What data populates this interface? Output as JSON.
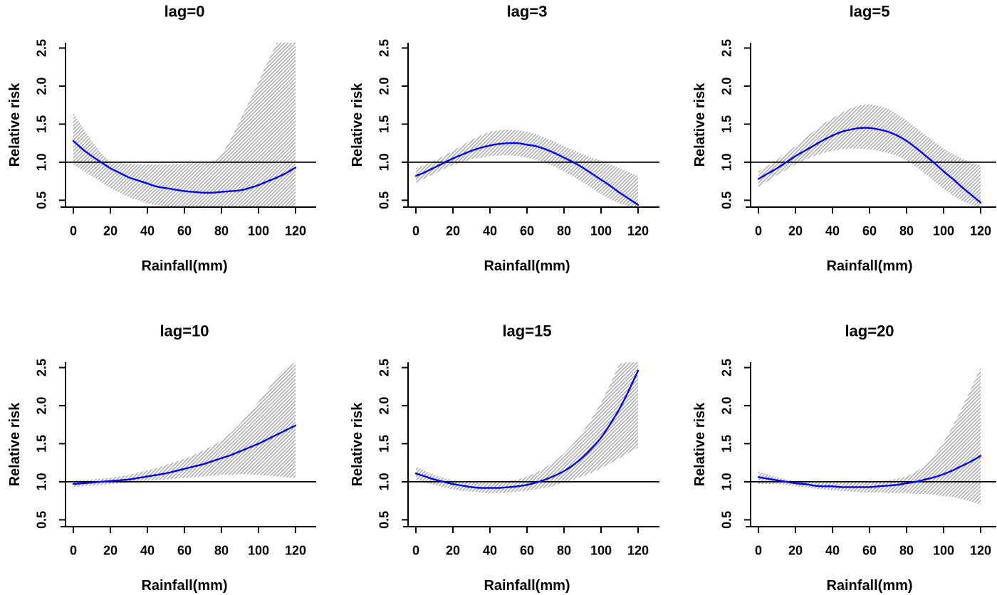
{
  "figure": {
    "background": "#ffffff",
    "colors": {
      "curve": "#0000f0",
      "hatch": "#a4a4a4",
      "axis": "#000000",
      "reference_line": "#000000"
    },
    "xlabel": "Rainfall(mm)",
    "ylabel": "Relative risk"
  },
  "chart_data": [
    {
      "type": "line",
      "title": "lag=0",
      "xlabel": "Rainfall(mm)",
      "ylabel": "Relative risk",
      "xticks": [
        0,
        20,
        40,
        60,
        80,
        100,
        120
      ],
      "ytick_labels": [
        "0.5",
        "1.0",
        "1.5",
        "2.0",
        "2.5"
      ],
      "yticks": [
        0.5,
        1.0,
        1.5,
        2.0,
        2.5
      ],
      "xlim": [
        -4,
        131
      ],
      "ylim": [
        0.41,
        2.57
      ],
      "ref_line_y": 1.0,
      "band_style": "hatched",
      "x": [
        0,
        5,
        10,
        15,
        20,
        25,
        30,
        35,
        40,
        45,
        50,
        55,
        60,
        65,
        70,
        75,
        80,
        85,
        90,
        95,
        100,
        105,
        110,
        115,
        120
      ],
      "curve": [
        1.28,
        1.17,
        1.08,
        1.0,
        0.92,
        0.86,
        0.8,
        0.76,
        0.72,
        0.68,
        0.66,
        0.64,
        0.62,
        0.61,
        0.6,
        0.6,
        0.61,
        0.62,
        0.63,
        0.66,
        0.7,
        0.75,
        0.8,
        0.86,
        0.93
      ],
      "upper": [
        1.65,
        1.45,
        1.28,
        1.12,
        1.0,
        0.99,
        0.98,
        0.97,
        0.97,
        0.97,
        0.97,
        0.98,
        0.98,
        0.99,
        0.99,
        1.01,
        1.1,
        1.3,
        1.55,
        1.8,
        2.05,
        2.32,
        2.57,
        2.57,
        2.57
      ],
      "lower": [
        0.97,
        0.89,
        0.82,
        0.74,
        0.66,
        0.6,
        0.54,
        0.5,
        0.46,
        0.44,
        0.42,
        0.41,
        0.41,
        0.41,
        0.41,
        0.41,
        0.41,
        0.41,
        0.41,
        0.41,
        0.41,
        0.41,
        0.41,
        0.41,
        0.41
      ]
    },
    {
      "type": "line",
      "title": "lag=3",
      "xlabel": "Rainfall(mm)",
      "ylabel": "Relative risk",
      "xticks": [
        0,
        20,
        40,
        60,
        80,
        100,
        120
      ],
      "ytick_labels": [
        "0.5",
        "1.0",
        "1.5",
        "2.0",
        "2.5"
      ],
      "yticks": [
        0.5,
        1.0,
        1.5,
        2.0,
        2.5
      ],
      "xlim": [
        -4,
        131
      ],
      "ylim": [
        0.41,
        2.57
      ],
      "ref_line_y": 1.0,
      "band_style": "hatched",
      "x": [
        0,
        5,
        10,
        15,
        20,
        25,
        30,
        35,
        40,
        45,
        50,
        55,
        60,
        65,
        70,
        75,
        80,
        85,
        90,
        95,
        100,
        105,
        110,
        115,
        120
      ],
      "curve": [
        0.82,
        0.87,
        0.93,
        0.99,
        1.05,
        1.1,
        1.15,
        1.19,
        1.22,
        1.24,
        1.25,
        1.25,
        1.23,
        1.21,
        1.17,
        1.12,
        1.06,
        1.0,
        0.93,
        0.85,
        0.77,
        0.69,
        0.6,
        0.52,
        0.44
      ],
      "upper": [
        0.92,
        0.97,
        1.02,
        1.08,
        1.15,
        1.22,
        1.29,
        1.35,
        1.4,
        1.42,
        1.43,
        1.42,
        1.4,
        1.37,
        1.32,
        1.27,
        1.21,
        1.16,
        1.11,
        1.06,
        1.02,
        0.97,
        0.92,
        0.87,
        0.82
      ],
      "lower": [
        0.73,
        0.79,
        0.85,
        0.91,
        0.96,
        1.0,
        1.04,
        1.06,
        1.08,
        1.09,
        1.09,
        1.08,
        1.06,
        1.03,
        0.99,
        0.94,
        0.88,
        0.81,
        0.74,
        0.66,
        0.58,
        0.51,
        0.46,
        0.42,
        0.41
      ]
    },
    {
      "type": "line",
      "title": "lag=5",
      "xlabel": "Rainfall(mm)",
      "ylabel": "Relative risk",
      "xticks": [
        0,
        20,
        40,
        60,
        80,
        100,
        120
      ],
      "ytick_labels": [
        "0.5",
        "1.0",
        "1.5",
        "2.0",
        "2.5"
      ],
      "yticks": [
        0.5,
        1.0,
        1.5,
        2.0,
        2.5
      ],
      "xlim": [
        -4,
        131
      ],
      "ylim": [
        0.41,
        2.57
      ],
      "ref_line_y": 1.0,
      "band_style": "hatched",
      "x": [
        0,
        5,
        10,
        15,
        20,
        25,
        30,
        35,
        40,
        45,
        50,
        55,
        60,
        65,
        70,
        75,
        80,
        85,
        90,
        95,
        100,
        105,
        110,
        115,
        120
      ],
      "curve": [
        0.78,
        0.85,
        0.92,
        1.0,
        1.08,
        1.15,
        1.22,
        1.29,
        1.35,
        1.4,
        1.43,
        1.45,
        1.45,
        1.43,
        1.4,
        1.35,
        1.28,
        1.19,
        1.09,
        0.99,
        0.88,
        0.78,
        0.67,
        0.57,
        0.47
      ],
      "upper": [
        0.88,
        0.95,
        1.03,
        1.12,
        1.21,
        1.31,
        1.41,
        1.5,
        1.58,
        1.65,
        1.71,
        1.75,
        1.76,
        1.74,
        1.7,
        1.63,
        1.55,
        1.45,
        1.36,
        1.27,
        1.18,
        1.11,
        1.05,
        1.0,
        0.96
      ],
      "lower": [
        0.67,
        0.75,
        0.83,
        0.9,
        0.97,
        1.03,
        1.08,
        1.12,
        1.15,
        1.17,
        1.18,
        1.18,
        1.17,
        1.15,
        1.12,
        1.08,
        1.02,
        0.94,
        0.85,
        0.75,
        0.65,
        0.56,
        0.49,
        0.44,
        0.41
      ]
    },
    {
      "type": "line",
      "title": "lag=10",
      "xlabel": "Rainfall(mm)",
      "ylabel": "Relative risk",
      "xticks": [
        0,
        20,
        40,
        60,
        80,
        100,
        120
      ],
      "ytick_labels": [
        "0.5",
        "1.0",
        "1.5",
        "2.0",
        "2.5"
      ],
      "yticks": [
        0.5,
        1.0,
        1.5,
        2.0,
        2.5
      ],
      "xlim": [
        -4,
        131
      ],
      "ylim": [
        0.41,
        2.57
      ],
      "ref_line_y": 1.0,
      "band_style": "hatched",
      "x": [
        0,
        5,
        10,
        15,
        20,
        25,
        30,
        35,
        40,
        45,
        50,
        55,
        60,
        65,
        70,
        75,
        80,
        85,
        90,
        95,
        100,
        105,
        110,
        115,
        120
      ],
      "curve": [
        0.97,
        0.98,
        0.99,
        1.0,
        1.01,
        1.02,
        1.03,
        1.05,
        1.07,
        1.09,
        1.11,
        1.14,
        1.17,
        1.2,
        1.23,
        1.27,
        1.31,
        1.35,
        1.4,
        1.45,
        1.5,
        1.56,
        1.62,
        1.68,
        1.74
      ],
      "upper": [
        1.02,
        1.02,
        1.03,
        1.04,
        1.05,
        1.07,
        1.09,
        1.12,
        1.15,
        1.18,
        1.22,
        1.26,
        1.3,
        1.35,
        1.41,
        1.47,
        1.54,
        1.64,
        1.76,
        1.9,
        2.05,
        2.21,
        2.38,
        2.5,
        2.57
      ],
      "lower": [
        0.93,
        0.94,
        0.95,
        0.96,
        0.97,
        0.98,
        0.99,
        1.0,
        1.01,
        1.02,
        1.03,
        1.04,
        1.05,
        1.06,
        1.07,
        1.08,
        1.09,
        1.09,
        1.1,
        1.1,
        1.09,
        1.08,
        1.07,
        1.06,
        1.05
      ]
    },
    {
      "type": "line",
      "title": "lag=15",
      "xlabel": "Rainfall(mm)",
      "ylabel": "Relative risk",
      "xticks": [
        0,
        20,
        40,
        60,
        80,
        100,
        120
      ],
      "ytick_labels": [
        "0.5",
        "1.0",
        "1.5",
        "2.0",
        "2.5"
      ],
      "yticks": [
        0.5,
        1.0,
        1.5,
        2.0,
        2.5
      ],
      "xlim": [
        -4,
        131
      ],
      "ylim": [
        0.41,
        2.57
      ],
      "ref_line_y": 1.0,
      "band_style": "hatched",
      "x": [
        0,
        5,
        10,
        15,
        20,
        25,
        30,
        35,
        40,
        45,
        50,
        55,
        60,
        65,
        70,
        75,
        80,
        85,
        90,
        95,
        100,
        105,
        110,
        115,
        120
      ],
      "curve": [
        1.11,
        1.07,
        1.03,
        1.0,
        0.97,
        0.95,
        0.93,
        0.92,
        0.92,
        0.92,
        0.93,
        0.94,
        0.96,
        0.99,
        1.03,
        1.08,
        1.14,
        1.22,
        1.32,
        1.44,
        1.58,
        1.76,
        1.96,
        2.2,
        2.46
      ],
      "upper": [
        1.2,
        1.14,
        1.09,
        1.05,
        1.02,
        1.0,
        0.99,
        0.99,
        0.99,
        1.0,
        1.01,
        1.03,
        1.07,
        1.12,
        1.19,
        1.27,
        1.37,
        1.5,
        1.65,
        1.83,
        2.04,
        2.28,
        2.55,
        2.57,
        2.57
      ],
      "lower": [
        1.03,
        0.99,
        0.96,
        0.93,
        0.9,
        0.88,
        0.87,
        0.86,
        0.85,
        0.85,
        0.86,
        0.87,
        0.88,
        0.9,
        0.92,
        0.95,
        0.99,
        1.03,
        1.07,
        1.12,
        1.18,
        1.24,
        1.31,
        1.38,
        1.45
      ]
    },
    {
      "type": "line",
      "title": "lag=20",
      "xlabel": "Rainfall(mm)",
      "ylabel": "Relative risk",
      "xticks": [
        0,
        20,
        40,
        60,
        80,
        100,
        120
      ],
      "ytick_labels": [
        "0.5",
        "1.0",
        "1.5",
        "2.0",
        "2.5"
      ],
      "yticks": [
        0.5,
        1.0,
        1.5,
        2.0,
        2.5
      ],
      "xlim": [
        -4,
        131
      ],
      "ylim": [
        0.41,
        2.57
      ],
      "ref_line_y": 1.0,
      "band_style": "hatched",
      "x": [
        0,
        5,
        10,
        15,
        20,
        25,
        30,
        35,
        40,
        45,
        50,
        55,
        60,
        65,
        70,
        75,
        80,
        85,
        90,
        95,
        100,
        105,
        110,
        115,
        120
      ],
      "curve": [
        1.06,
        1.04,
        1.02,
        1.0,
        0.98,
        0.97,
        0.95,
        0.94,
        0.94,
        0.93,
        0.93,
        0.93,
        0.93,
        0.94,
        0.95,
        0.96,
        0.98,
        1.0,
        1.03,
        1.06,
        1.1,
        1.15,
        1.21,
        1.27,
        1.34
      ],
      "upper": [
        1.13,
        1.1,
        1.06,
        1.03,
        1.01,
        1.0,
        0.99,
        0.99,
        0.99,
        0.99,
        0.99,
        1.0,
        1.0,
        1.01,
        1.02,
        1.04,
        1.07,
        1.13,
        1.22,
        1.35,
        1.52,
        1.73,
        1.97,
        2.23,
        2.5
      ],
      "lower": [
        0.97,
        0.97,
        0.97,
        0.96,
        0.94,
        0.93,
        0.91,
        0.9,
        0.89,
        0.88,
        0.87,
        0.86,
        0.86,
        0.86,
        0.85,
        0.85,
        0.85,
        0.84,
        0.84,
        0.83,
        0.81,
        0.8,
        0.77,
        0.74,
        0.7
      ]
    }
  ]
}
